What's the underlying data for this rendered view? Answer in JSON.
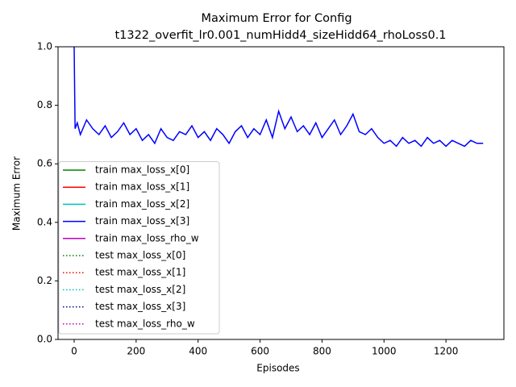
{
  "chart_data": {
    "type": "line",
    "title": [
      "Maximum Error for Config",
      "t1322_overfit_lr0.001_numHidd4_sizeHidd64_rhoLoss0.1"
    ],
    "x_label": "Episodes",
    "y_label": "Maximum Error",
    "x": [
      0,
      3,
      10,
      20,
      40,
      60,
      80,
      100,
      120,
      140,
      160,
      180,
      200,
      220,
      240,
      260,
      280,
      300,
      320,
      340,
      360,
      380,
      400,
      420,
      440,
      460,
      480,
      500,
      520,
      540,
      560,
      580,
      600,
      620,
      640,
      660,
      680,
      700,
      720,
      740,
      760,
      780,
      800,
      820,
      840,
      860,
      880,
      900,
      920,
      940,
      960,
      980,
      1000,
      1020,
      1040,
      1060,
      1080,
      1100,
      1120,
      1140,
      1160,
      1180,
      1200,
      1220,
      1240,
      1260,
      1280,
      1300,
      1320
    ],
    "series": [
      {
        "name": "train max_loss_x[0]",
        "color": "#008000",
        "linestyle": "solid"
      },
      {
        "name": "train max_loss_x[1]",
        "color": "#ff0000",
        "linestyle": "solid"
      },
      {
        "name": "train max_loss_x[2]",
        "color": "#00bfbf",
        "linestyle": "solid"
      },
      {
        "name": "train max_loss_x[3]",
        "color": "#0000ff",
        "linestyle": "solid",
        "values": [
          1.0,
          0.72,
          0.74,
          0.7,
          0.75,
          0.72,
          0.7,
          0.73,
          0.69,
          0.71,
          0.74,
          0.7,
          0.72,
          0.68,
          0.7,
          0.67,
          0.72,
          0.69,
          0.68,
          0.71,
          0.7,
          0.73,
          0.69,
          0.71,
          0.68,
          0.72,
          0.7,
          0.67,
          0.71,
          0.73,
          0.69,
          0.72,
          0.7,
          0.75,
          0.69,
          0.78,
          0.72,
          0.76,
          0.71,
          0.73,
          0.7,
          0.74,
          0.69,
          0.72,
          0.75,
          0.7,
          0.73,
          0.77,
          0.71,
          0.7,
          0.72,
          0.69,
          0.67,
          0.68,
          0.66,
          0.69,
          0.67,
          0.68,
          0.66,
          0.69,
          0.67,
          0.68,
          0.66,
          0.68,
          0.67,
          0.66,
          0.68,
          0.67,
          0.67
        ]
      },
      {
        "name": "train max_loss_rho_w",
        "color": "#bf00bf",
        "linestyle": "solid"
      },
      {
        "name": "test max_loss_x[0]",
        "color": "#008000",
        "linestyle": "dotted"
      },
      {
        "name": "test max_loss_x[1]",
        "color": "#ff0000",
        "linestyle": "dotted"
      },
      {
        "name": "test max_loss_x[2]",
        "color": "#00bfbf",
        "linestyle": "dotted"
      },
      {
        "name": "test max_loss_x[3]",
        "color": "#00008b",
        "linestyle": "dotted"
      },
      {
        "name": "test max_loss_rho_w",
        "color": "#bf00bf",
        "linestyle": "dotted"
      }
    ],
    "xlim": [
      -52,
      1387
    ],
    "ylim": [
      0,
      1
    ],
    "xticks": [
      0,
      200,
      400,
      600,
      800,
      1000,
      1200
    ],
    "yticks": [
      {
        "value": 0,
        "label": "0.0"
      },
      0.2,
      0.4,
      0.6,
      0.8,
      {
        "value": 1,
        "label": "1.0"
      }
    ],
    "legend": "lower left",
    "grid": false
  }
}
